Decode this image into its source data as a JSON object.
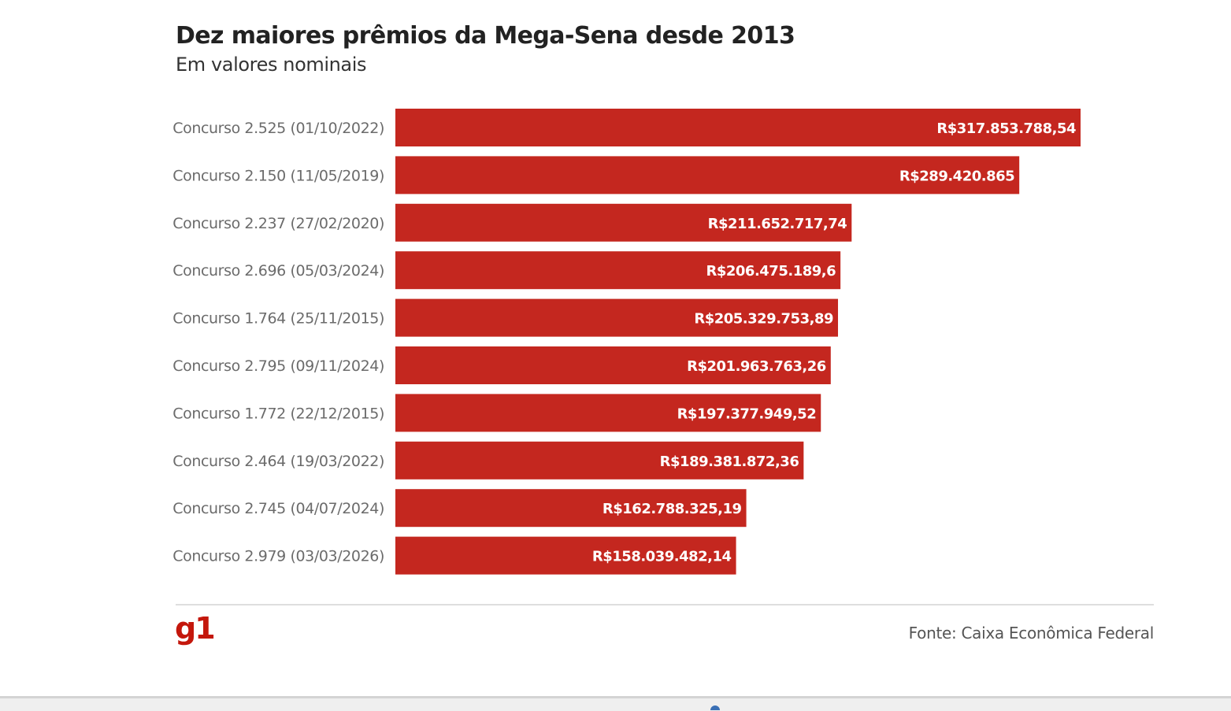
{
  "chart_data": {
    "type": "bar",
    "orientation": "horizontal",
    "title": "Dez maiores prêmios da Mega-Sena desde 2013",
    "subtitle": "Em valores nominais",
    "xlabel": "",
    "ylabel": "",
    "xlim": [
      0,
      317853788.54
    ],
    "grid": false,
    "legend": "none",
    "bar_color": "#c4271f",
    "categories": [
      "Concurso 2.525 (01/10/2022)",
      "Concurso 2.150 (11/05/2019)",
      "Concurso 2.237 (27/02/2020)",
      "Concurso 2.696 (05/03/2024)",
      "Concurso 1.764 (25/11/2015)",
      "Concurso 2.795 (09/11/2024)",
      "Concurso 1.772 (22/12/2015)",
      "Concurso 2.464 (19/03/2022)",
      "Concurso 2.745 (04/07/2024)",
      "Concurso 2.979 (03/03/2026)"
    ],
    "values": [
      317853788.54,
      289420865,
      211652717.74,
      206475189.6,
      205329753.89,
      201963763.26,
      197377949.52,
      189381872.36,
      162788325.19,
      158039482.14
    ],
    "value_labels": [
      "R$317.853.788,54",
      "R$289.420.865",
      "R$211.652.717,74",
      "R$206.475.189,6",
      "R$205.329.753,89",
      "R$201.963.763,26",
      "R$197.377.949,52",
      "R$189.381.872,36",
      "R$162.788.325,19",
      "R$158.039.482,14"
    ]
  },
  "footer": {
    "logo": "g1",
    "source": "Fonte: Caixa Econômica Federal"
  },
  "colors": {
    "bar": "#c4271f",
    "logo": "#c4170c",
    "title": "#222222",
    "label": "#6b6b6b"
  }
}
